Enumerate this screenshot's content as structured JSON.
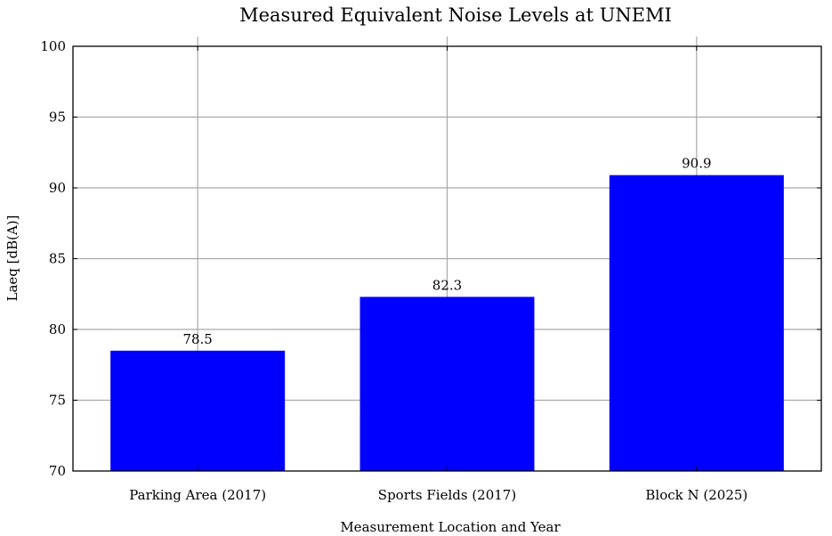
{
  "chart_data": {
    "type": "bar",
    "title": "Measured Equivalent Noise Levels at UNEMI",
    "xlabel": "Measurement Location and Year",
    "ylabel": "Laeq [dB(A)]",
    "categories": [
      "Parking Area (2017)",
      "Sports Fields (2017)",
      "Block N (2025)"
    ],
    "values": [
      78.5,
      82.3,
      90.9
    ],
    "value_labels": [
      "78.5",
      "82.3",
      "90.9"
    ],
    "ylim": [
      70,
      100
    ],
    "yticks": [
      70,
      75,
      80,
      85,
      90,
      95,
      100
    ],
    "grid": true,
    "bar_color": "#0000ff"
  }
}
